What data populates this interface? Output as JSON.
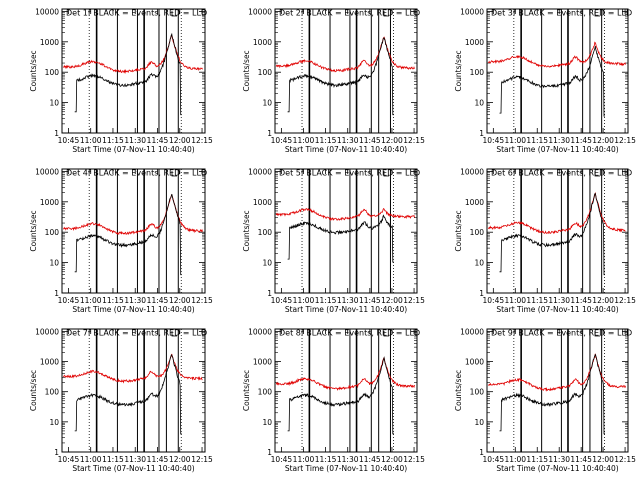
{
  "chart_data": {
    "type": "line",
    "layout": "3x3 grid",
    "scale": "log",
    "y_ticks": [
      1,
      10,
      100,
      1000,
      10000
    ],
    "y_tick_labels": [
      "1",
      "10",
      "100",
      "1000",
      "10000"
    ],
    "ylim": [
      1,
      12000
    ],
    "ylabel": "Counts/sec",
    "xlabel": "Start Time (07-Nov-11 10:40:40)",
    "x_ticks": [
      "10:45",
      "11:00",
      "11:15",
      "11:30",
      "11:45",
      "12:00",
      "12:15"
    ],
    "x_tick_minutes": [
      45,
      60,
      75,
      90,
      105,
      120,
      135
    ],
    "xlim_minutes": [
      40.67,
      137
    ],
    "series_colors": {
      "events": "#000000",
      "lld": "#e00000"
    },
    "dotted_lines_minutes": [
      59,
      121
    ],
    "solid_lines_minutes": [
      64,
      78,
      91.5,
      96,
      106,
      111,
      119
    ],
    "panels": [
      {
        "title": "Det 1f BLACK = Events, RED = LLD",
        "lld_base": 150,
        "events_base": 50,
        "peak": 1800,
        "lld_peak": 1900
      },
      {
        "title": "Det 2f BLACK = Events, RED = LLD",
        "lld_base": 160,
        "events_base": 50,
        "peak": 1500,
        "lld_peak": 1700
      },
      {
        "title": "Det 3f BLACK = Events, RED = LLD",
        "lld_base": 220,
        "events_base": 45,
        "peak": 700,
        "lld_peak": 1100
      },
      {
        "title": "Det 4f BLACK = Events, RED = LLD",
        "lld_base": 130,
        "events_base": 50,
        "peak": 1900,
        "lld_peak": 2000
      },
      {
        "title": "Det 5f BLACK = Events, RED = LLD",
        "lld_base": 380,
        "events_base": 130,
        "peak": 350,
        "lld_peak": 650
      },
      {
        "title": "Det 6f BLACK = Events, RED = LLD",
        "lld_base": 140,
        "events_base": 50,
        "peak": 1900,
        "lld_peak": 2200
      },
      {
        "title": "Det 7f BLACK = Events, RED = LLD",
        "lld_base": 320,
        "events_base": 50,
        "peak": 1800,
        "lld_peak": 2000
      },
      {
        "title": "Det 8f BLACK = Events, RED = LLD",
        "lld_base": 180,
        "events_base": 50,
        "peak": 1300,
        "lld_peak": 1500
      },
      {
        "title": "Det 9f BLACK = Events, RED = LLD",
        "lld_base": 170,
        "events_base": 50,
        "peak": 1800,
        "lld_peak": 2000
      }
    ]
  }
}
